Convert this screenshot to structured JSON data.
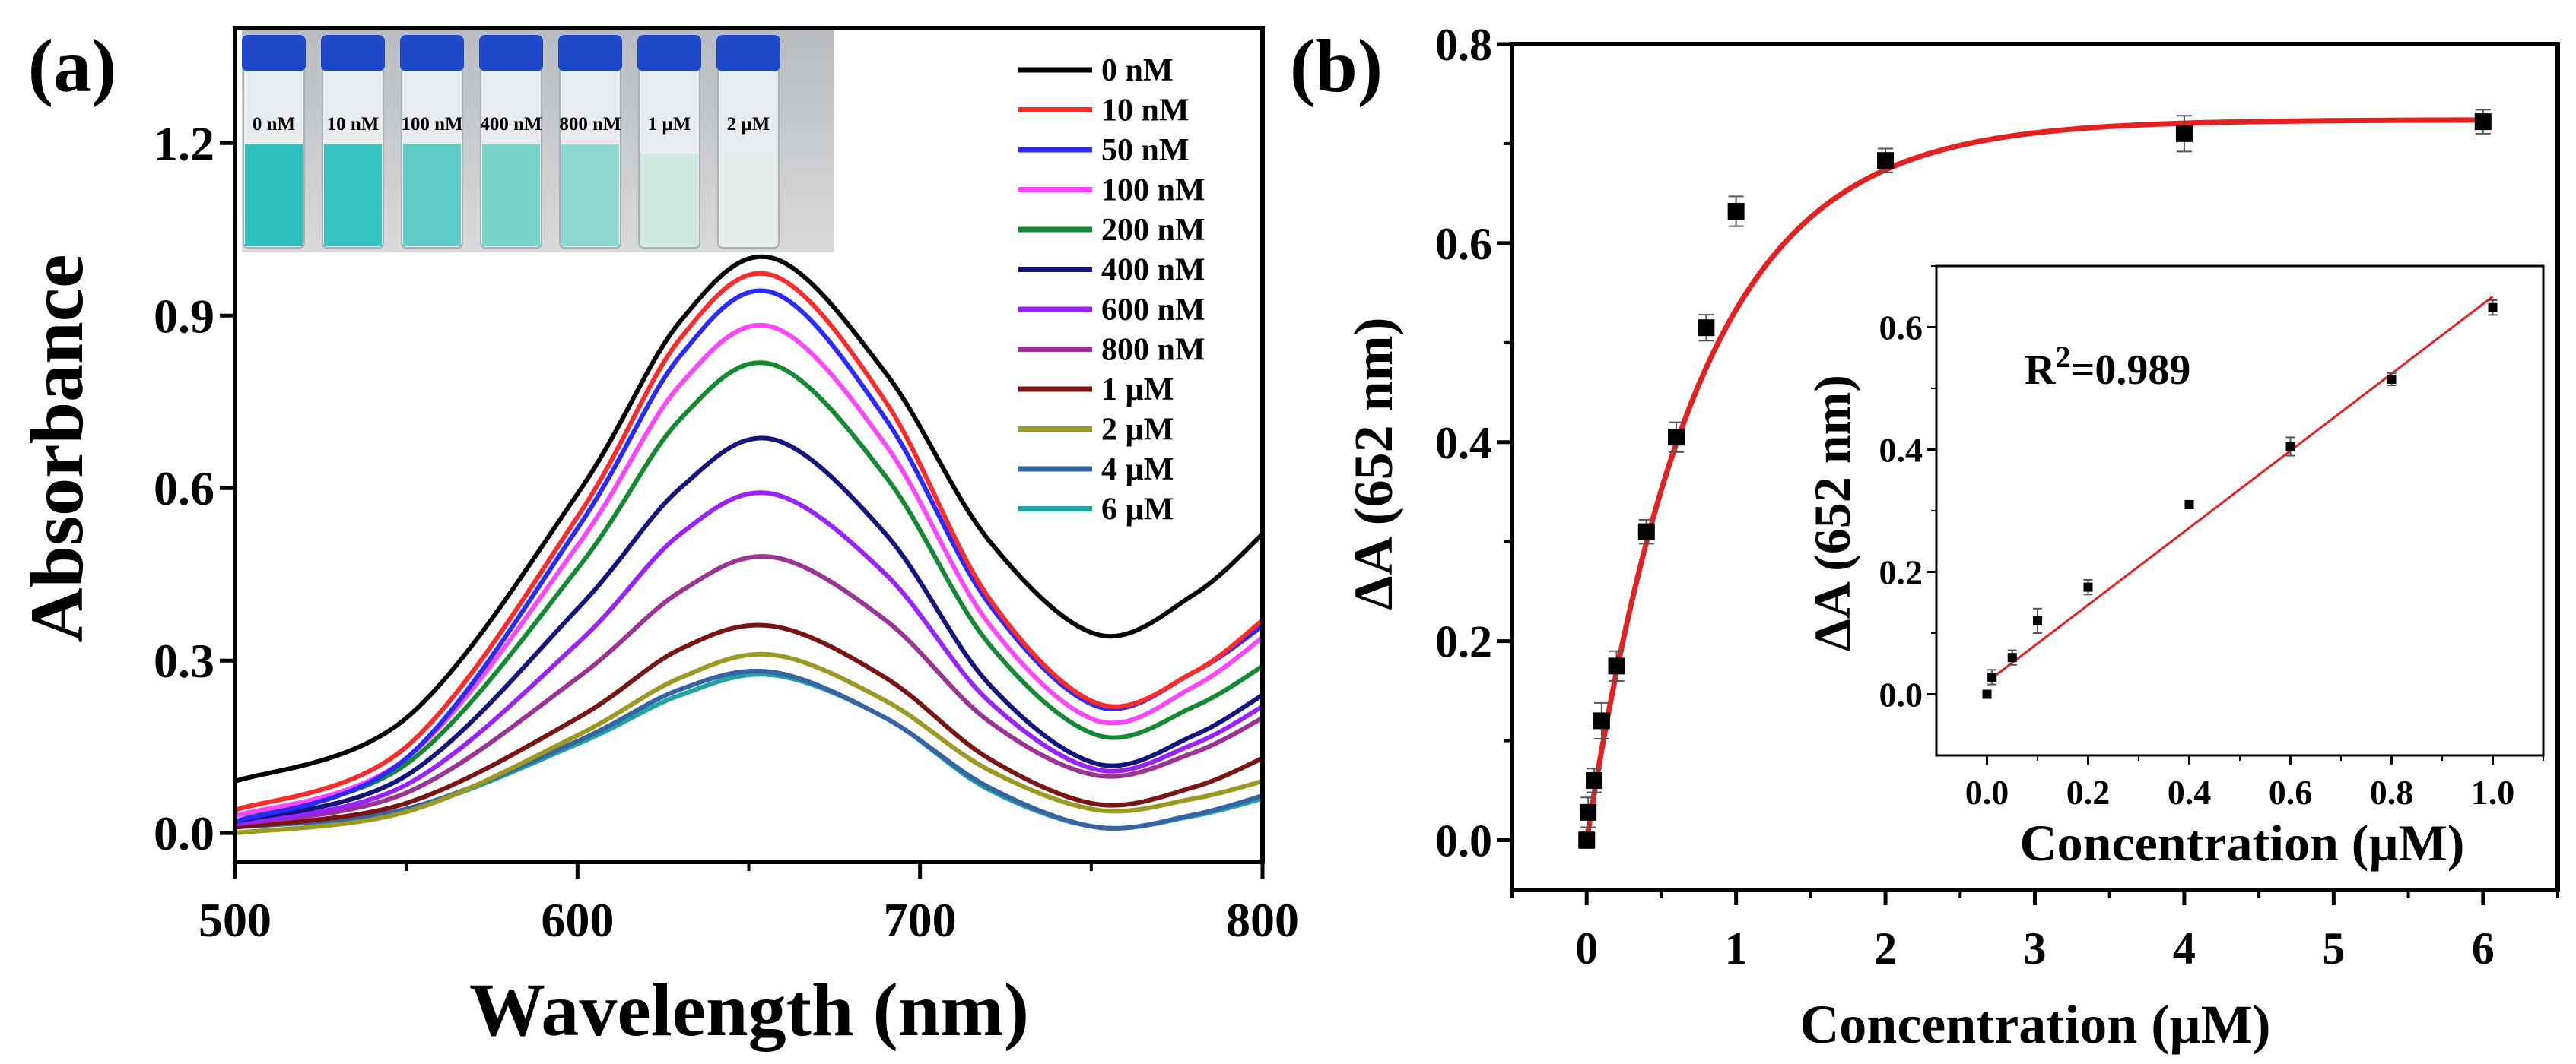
{
  "chart_data": [
    {
      "panel_label": "(a)",
      "type": "line",
      "xlabel": "Wavelength (nm)",
      "ylabel": "Absorbance",
      "xlim": [
        500,
        800
      ],
      "ylim": [
        -0.05,
        1.4
      ],
      "xticks": [
        "500",
        "600",
        "700",
        "800"
      ],
      "yticks": [
        "0.0",
        "0.3",
        "0.6",
        "0.9",
        "1.2"
      ],
      "xtick_values": [
        500,
        600,
        700,
        800
      ],
      "ytick_values": [
        0,
        0.3,
        0.6,
        0.9,
        1.2
      ],
      "legend_position": "top-right",
      "x": [
        500,
        550,
        600,
        630,
        657,
        690,
        720,
        752,
        780,
        800
      ],
      "series": [
        {
          "name": "0 nM",
          "color": "#000000",
          "values": [
            0.09,
            0.2,
            0.59,
            0.89,
            1.0,
            0.8,
            0.51,
            0.345,
            0.415,
            0.52
          ]
        },
        {
          "name": "10 nM",
          "color": "#ff2a2a",
          "values": [
            0.04,
            0.15,
            0.55,
            0.86,
            0.97,
            0.75,
            0.41,
            0.225,
            0.28,
            0.37
          ]
        },
        {
          "name": "50 nM",
          "color": "#2a2aff",
          "values": [
            0.02,
            0.13,
            0.53,
            0.83,
            0.94,
            0.72,
            0.4,
            0.22,
            0.28,
            0.36
          ]
        },
        {
          "name": "100 nM",
          "color": "#ff45ff",
          "values": [
            0.03,
            0.13,
            0.5,
            0.78,
            0.88,
            0.675,
            0.365,
            0.195,
            0.255,
            0.34
          ]
        },
        {
          "name": "200 nM",
          "color": "#138a32",
          "values": [
            0.03,
            0.12,
            0.46,
            0.72,
            0.815,
            0.62,
            0.33,
            0.17,
            0.22,
            0.29
          ]
        },
        {
          "name": "400 nM",
          "color": "#14147e",
          "values": [
            0.02,
            0.1,
            0.39,
            0.6,
            0.685,
            0.52,
            0.26,
            0.12,
            0.17,
            0.24
          ]
        },
        {
          "name": "600 nM",
          "color": "#9a22ff",
          "values": [
            0.015,
            0.084,
            0.33,
            0.52,
            0.59,
            0.45,
            0.23,
            0.11,
            0.155,
            0.22
          ]
        },
        {
          "name": "800 nM",
          "color": "#9a3394",
          "values": [
            0.015,
            0.07,
            0.27,
            0.42,
            0.48,
            0.37,
            0.195,
            0.1,
            0.14,
            0.2
          ]
        },
        {
          "name": "1 µM",
          "color": "#7a1414",
          "values": [
            0.01,
            0.052,
            0.2,
            0.32,
            0.36,
            0.27,
            0.13,
            0.05,
            0.08,
            0.13
          ]
        },
        {
          "name": "2 µM",
          "color": "#9a9a22",
          "values": [
            0.0,
            0.037,
            0.17,
            0.27,
            0.31,
            0.23,
            0.11,
            0.04,
            0.06,
            0.09
          ]
        },
        {
          "name": "4 µM",
          "color": "#3563a3",
          "values": [
            0.01,
            0.042,
            0.16,
            0.25,
            0.28,
            0.2,
            0.08,
            0.01,
            0.032,
            0.065
          ]
        },
        {
          "name": "6 µM",
          "color": "#22a3a3",
          "values": [
            0.01,
            0.041,
            0.155,
            0.24,
            0.275,
            0.2,
            0.076,
            0.01,
            0.03,
            0.06
          ]
        }
      ],
      "photo_inset": {
        "vial_labels": [
          "0 nM",
          "10 nM",
          "100 nM",
          "400 nM",
          "800 nM",
          "1 µM",
          "2 µM"
        ],
        "liquid_colors": [
          "#2fc0c0",
          "#35c2c0",
          "#5fcbc5",
          "#7ad3cb",
          "#8dd8cf",
          "#cfe8e2",
          "#e6eceb"
        ],
        "cap_color": "#1f48c8"
      }
    },
    {
      "panel_label": "(b)",
      "type": "scatter",
      "xlabel": "Concentration (µM)",
      "ylabel": "ΔA (652 nm)",
      "xlim": [
        -0.5,
        6.5
      ],
      "ylim": [
        -0.05,
        0.8
      ],
      "xticks": [
        "0",
        "1",
        "2",
        "3",
        "4",
        "5",
        "6"
      ],
      "yticks": [
        "0.0",
        "0.2",
        "0.4",
        "0.6",
        "0.8"
      ],
      "xtick_values": [
        0,
        1,
        2,
        3,
        4,
        5,
        6
      ],
      "ytick_values": [
        0,
        0.2,
        0.4,
        0.6,
        0.8
      ],
      "x": [
        0,
        0.01,
        0.05,
        0.1,
        0.2,
        0.4,
        0.6,
        0.8,
        1,
        2,
        4,
        6
      ],
      "y": [
        0,
        0.028,
        0.06,
        0.12,
        0.175,
        0.31,
        0.405,
        0.515,
        0.632,
        0.683,
        0.71,
        0.722
      ],
      "yerr": [
        0.008,
        0.015,
        0.012,
        0.018,
        0.015,
        0.012,
        0.015,
        0.013,
        0.015,
        0.012,
        0.018,
        0.012
      ],
      "fit": {
        "model": "y = A*(1-exp(-x/t))",
        "A": 0.724,
        "t": 0.75,
        "color": "#e52020"
      },
      "inset": {
        "type": "scatter",
        "xlabel": "Concentration (µM)",
        "ylabel": "ΔA (652 nm)",
        "annotation": "R²=0.989",
        "annotation_base": "R",
        "annotation_sup": "2",
        "annotation_rest": "=0.989",
        "xlim": [
          -0.1,
          1.1
        ],
        "ylim": [
          -0.1,
          0.7
        ],
        "xticks": [
          "0.0",
          "0.2",
          "0.4",
          "0.6",
          "0.8",
          "1.0"
        ],
        "yticks": [
          "0.0",
          "0.2",
          "0.4",
          "0.6"
        ],
        "xtick_values": [
          0,
          0.2,
          0.4,
          0.6,
          0.8,
          1.0
        ],
        "ytick_values": [
          0,
          0.2,
          0.4,
          0.6
        ],
        "x": [
          0,
          0.01,
          0.05,
          0.1,
          0.2,
          0.4,
          0.6,
          0.8,
          1
        ],
        "y": [
          0,
          0.028,
          0.06,
          0.12,
          0.175,
          0.31,
          0.405,
          0.515,
          0.632
        ],
        "yerr": [
          0.006,
          0.012,
          0.012,
          0.02,
          0.012,
          0.006,
          0.015,
          0.01,
          0.012
        ],
        "fit": {
          "slope": 0.63,
          "intercept": 0.02,
          "x_range": [
            0.01,
            1.0
          ],
          "color": "#e52020"
        }
      }
    }
  ]
}
